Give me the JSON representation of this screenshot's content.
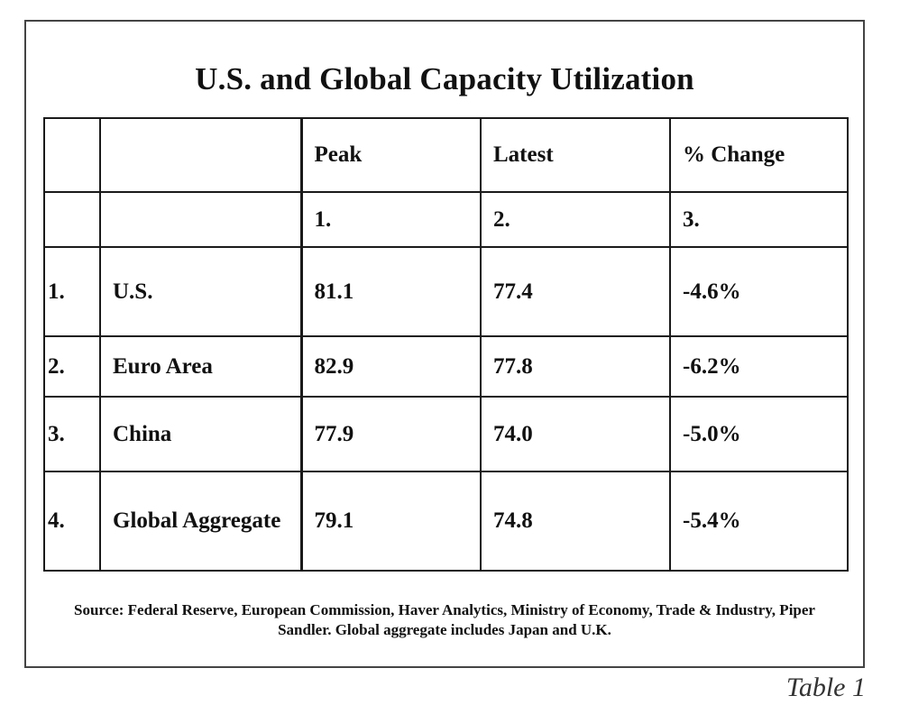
{
  "chart_data": {
    "type": "table",
    "title": "U.S. and Global Capacity Utilization",
    "columns": [
      "",
      "",
      "Peak",
      "Latest",
      "% Change"
    ],
    "column_numbers": [
      "",
      "",
      "1.",
      "2.",
      "3."
    ],
    "rows": [
      {
        "num": "1.",
        "label": "U.S.",
        "peak": "81.1",
        "latest": "77.4",
        "change": "-4.6%"
      },
      {
        "num": "2.",
        "label": "Euro Area",
        "peak": "82.9",
        "latest": "77.8",
        "change": "-6.2%"
      },
      {
        "num": "3.",
        "label": "China",
        "peak": "77.9",
        "latest": "74.0",
        "change": "-5.0%"
      },
      {
        "num": "4.",
        "label": "Global Aggregate",
        "peak": "79.1",
        "latest": "74.8",
        "change": "-5.4%"
      }
    ],
    "source": "Source: Federal Reserve, European Commission, Haver Analytics, Ministry of Economy, Trade & Industry, Piper Sandler. Global aggregate includes Japan and U.K.",
    "caption": "Table 1"
  }
}
